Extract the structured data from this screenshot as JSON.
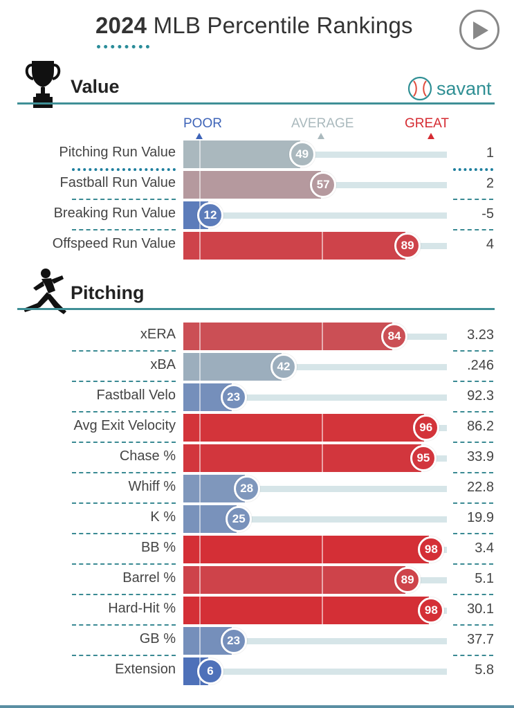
{
  "header": {
    "year": "2024",
    "title_rest": "MLB Percentile Rankings",
    "brand": "savant"
  },
  "colors": {
    "accent_teal": "#3f8f96",
    "poor_blue": "#3e64b8",
    "average_gray": "#aab9bd",
    "great_red": "#d52b32",
    "track": "#d6e5e8"
  },
  "scale": {
    "poor": "POOR",
    "average": "AVERAGE",
    "great": "GREAT"
  },
  "sections": [
    {
      "title": "Value",
      "icon": "trophy-icon",
      "rows": [
        {
          "label": "Pitching Run Value",
          "percentile": 49,
          "value": "1"
        },
        {
          "label": "Fastball Run Value",
          "percentile": 57,
          "value": "2"
        },
        {
          "label": "Breaking Run Value",
          "percentile": 12,
          "value": "-5"
        },
        {
          "label": "Offspeed Run Value",
          "percentile": 89,
          "value": "4"
        }
      ]
    },
    {
      "title": "Pitching",
      "icon": "pitcher-icon",
      "rows": [
        {
          "label": "xERA",
          "percentile": 84,
          "value": "3.23"
        },
        {
          "label": "xBA",
          "percentile": 42,
          "value": ".246"
        },
        {
          "label": "Fastball Velo",
          "percentile": 23,
          "value": "92.3"
        },
        {
          "label": "Avg Exit Velocity",
          "percentile": 96,
          "value": "86.2"
        },
        {
          "label": "Chase %",
          "percentile": 95,
          "value": "33.9"
        },
        {
          "label": "Whiff %",
          "percentile": 28,
          "value": "22.8"
        },
        {
          "label": "K %",
          "percentile": 25,
          "value": "19.9"
        },
        {
          "label": "BB %",
          "percentile": 98,
          "value": "3.4"
        },
        {
          "label": "Barrel %",
          "percentile": 89,
          "value": "5.1"
        },
        {
          "label": "Hard-Hit %",
          "percentile": 98,
          "value": "30.1"
        },
        {
          "label": "GB %",
          "percentile": 23,
          "value": "37.7"
        },
        {
          "label": "Extension",
          "percentile": 6,
          "value": "5.8"
        }
      ]
    }
  ],
  "chart_data": {
    "type": "bar",
    "title": "2024 MLB Percentile Rankings",
    "xlim": [
      0,
      100
    ],
    "categories": [
      "Pitching Run Value",
      "Fastball Run Value",
      "Breaking Run Value",
      "Offspeed Run Value",
      "xERA",
      "xBA",
      "Fastball Velo",
      "Avg Exit Velocity",
      "Chase %",
      "Whiff %",
      "K %",
      "BB %",
      "Barrel %",
      "Hard-Hit %",
      "GB %",
      "Extension"
    ],
    "series": [
      {
        "name": "",
        "values": [
          49,
          57,
          12,
          89,
          84,
          42,
          23,
          96,
          95,
          28,
          25,
          98,
          89,
          98,
          23,
          6
        ]
      }
    ]
  }
}
